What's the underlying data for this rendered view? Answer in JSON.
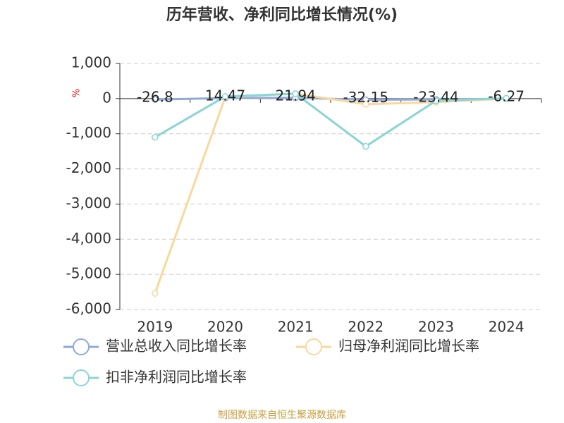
{
  "chart_data": {
    "type": "line",
    "title": "历年营收、净利同比增长情况(%)",
    "y_label": "%",
    "categories": [
      "2019",
      "2020",
      "2021",
      "2022",
      "2023",
      "2024"
    ],
    "series": [
      {
        "name": "营业总收入同比增长率",
        "color": "#8fa9d8",
        "values": [
          -26.8,
          14.47,
          21.94,
          -32.15,
          -23.44,
          -6.27
        ],
        "show_labels": true
      },
      {
        "name": "归母净利润同比增长率",
        "color": "#f8d89c",
        "values": [
          -5540,
          40,
          140,
          -160,
          -100,
          0
        ]
      },
      {
        "name": "扣非净利润同比增长率",
        "color": "#8ad4d6",
        "values": [
          -1100,
          60,
          140,
          -1360,
          -60,
          10
        ]
      }
    ],
    "ylim": [
      -6000,
      1000
    ],
    "yticks": [
      {
        "value": -6000,
        "label": "-6,000"
      },
      {
        "value": -5000,
        "label": "-5,000"
      },
      {
        "value": -4000,
        "label": "-4,000"
      },
      {
        "value": -3000,
        "label": "-3,000"
      },
      {
        "value": -2000,
        "label": "-2,000"
      },
      {
        "value": -1000,
        "label": "-1,000"
      },
      0,
      {
        "value": 1000,
        "label": "1,000"
      }
    ],
    "grid": true,
    "source": "制图数据来自恒生聚源数据库"
  }
}
